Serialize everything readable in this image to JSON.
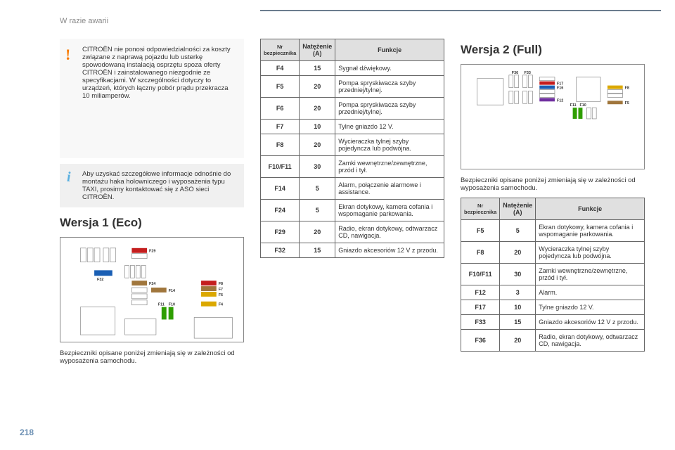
{
  "page": {
    "breadcrumb": "W razie awarii",
    "number": "218"
  },
  "warning": {
    "text": "CITROËN nie ponosi odpowiedzialności za koszty związane z naprawą pojazdu lub usterkę spowodowaną instalacją osprzętu spoza oferty CITROËN i zainstalowanego niezgodnie ze specyfikacjami. W szczególności dotyczy to urządzeń, których łączny pobór prądu przekracza 10 miliamperów."
  },
  "info": {
    "text": "Aby uzyskać szczegółowe informacje odnośnie do montażu haka holowniczego i wyposażenia typu TAXI, prosimy kontaktować się z ASO sieci CITROËN."
  },
  "version1": {
    "title": "Wersja 1 (Eco)",
    "note": "Bezpieczniki opisane poniżej zmieniają się w zależności od wyposażenia samochodu.",
    "headers": {
      "col1": "Nr bezpiecznika",
      "col2": "Natężenie (A)",
      "col3": "Funkcje"
    },
    "rows": [
      {
        "nr": "F4",
        "amp": "15",
        "fn": "Sygnał dźwiękowy."
      },
      {
        "nr": "F5",
        "amp": "20",
        "fn": "Pompa spryskiwacza szyby przedniej/tylnej."
      },
      {
        "nr": "F6",
        "amp": "20",
        "fn": "Pompa spryskiwacza szyby przedniej/tylnej."
      },
      {
        "nr": "F7",
        "amp": "10",
        "fn": "Tylne gniazdo 12 V."
      },
      {
        "nr": "F8",
        "amp": "20",
        "fn": "Wycieraczka tylnej szyby pojedyncza lub podwójna."
      },
      {
        "nr": "F10/F11",
        "amp": "30",
        "fn": "Zamki wewnętrzne/zewnętrzne, przód i tył."
      },
      {
        "nr": "F14",
        "amp": "5",
        "fn": "Alarm, połączenie alarmowe i assistance."
      },
      {
        "nr": "F24",
        "amp": "5",
        "fn": "Ekran dotykowy, kamera cofania i wspomaganie parkowania."
      },
      {
        "nr": "F29",
        "amp": "20",
        "fn": "Radio, ekran dotykowy, odtwarzacz CD, nawigacja."
      },
      {
        "nr": "F32",
        "amp": "15",
        "fn": "Gniazdo akcesoriów 12 V z przodu."
      }
    ],
    "diagram": {
      "labels": [
        "F29",
        "F32",
        "F24",
        "F14",
        "F8",
        "F7",
        "F6",
        "F4",
        "F11",
        "F10"
      ],
      "colors": {
        "F29": "#c41e1e",
        "F32": "#1a5fb4",
        "F24": "#a0763c",
        "F14": "#a0763c",
        "F8": "#c41e1e",
        "F7": "#a0763c",
        "F6": "#dba800",
        "F4": "#dba800",
        "F11": "#2f9e00",
        "F10": "#2f9e00"
      }
    }
  },
  "version2": {
    "title": "Wersja 2 (Full)",
    "note": "Bezpieczniki opisane poniżej zmieniają się w zależności od wyposażenia samochodu.",
    "headers": {
      "col1": "Nr bezpiecznika",
      "col2": "Natężenie (A)",
      "col3": "Funkcje"
    },
    "rows": [
      {
        "nr": "F5",
        "amp": "5",
        "fn": "Ekran dotykowy, kamera cofania i wspomaganie parkowania."
      },
      {
        "nr": "F8",
        "amp": "20",
        "fn": "Wycieraczka tylnej szyby pojedyncza lub podwójna."
      },
      {
        "nr": "F10/F11",
        "amp": "30",
        "fn": "Zamki wewnętrzne/zewnętrzne, przód i tył."
      },
      {
        "nr": "F12",
        "amp": "3",
        "fn": "Alarm."
      },
      {
        "nr": "F17",
        "amp": "10",
        "fn": "Tylne gniazdo 12 V."
      },
      {
        "nr": "F33",
        "amp": "15",
        "fn": "Gniazdo akcesoriów 12 V z przodu."
      },
      {
        "nr": "F36",
        "amp": "20",
        "fn": "Radio, ekran dotykowy, odtwarzacz CD, nawigacja."
      }
    ],
    "diagram": {
      "labels": [
        "F36",
        "F33",
        "F17",
        "F16",
        "F12",
        "F8",
        "F5",
        "F11",
        "F10"
      ],
      "colors": {
        "F17": "#c41e1e",
        "F16": "#1a5fb4",
        "F12": "#7030a0",
        "F8": "#dba800",
        "F5": "#a0763c",
        "F11": "#2f9e00",
        "F10": "#2f9e00"
      }
    }
  }
}
